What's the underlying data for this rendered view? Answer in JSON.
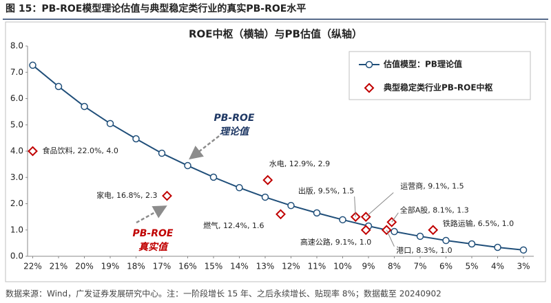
{
  "caption": "图 15：PB-ROE模型理论估值与典型稳定类行业的真实PB-ROE水平",
  "source": "数据来源：Wind，广发证券发展研究中心。注：一阶段增长 15 年、之后永续增长、贴现率 8%；数据截至 20240902",
  "chart_data": {
    "type": "line-scatter",
    "title": "ROE中枢（横轴）与PB估值（纵轴）",
    "xlim": [
      22.2,
      2.6
    ],
    "ylim": [
      0,
      8
    ],
    "xticks": [
      {
        "value": 22,
        "label": "22%"
      },
      {
        "value": 21,
        "label": "21%"
      },
      {
        "value": 20,
        "label": "20%"
      },
      {
        "value": 19,
        "label": "19%"
      },
      {
        "value": 18,
        "label": "18%"
      },
      {
        "value": 17,
        "label": "17%"
      },
      {
        "value": 16,
        "label": "16%"
      },
      {
        "value": 15,
        "label": "15%"
      },
      {
        "value": 14,
        "label": "14%"
      },
      {
        "value": 13,
        "label": "13%"
      },
      {
        "value": 12,
        "label": "12%"
      },
      {
        "value": 11,
        "label": "11%"
      },
      {
        "value": 10,
        "label": "10%"
      },
      {
        "value": 9,
        "label": "9%"
      },
      {
        "value": 8,
        "label": "8%"
      },
      {
        "value": 7,
        "label": "7%"
      },
      {
        "value": 6,
        "label": "6%"
      },
      {
        "value": 5,
        "label": "5%"
      },
      {
        "value": 4,
        "label": "4%"
      },
      {
        "value": 3,
        "label": "3%"
      }
    ],
    "yticks": [
      {
        "value": 0,
        "label": "0.0"
      },
      {
        "value": 1,
        "label": "1.0"
      },
      {
        "value": 2,
        "label": "2.0"
      },
      {
        "value": 3,
        "label": "3.0"
      },
      {
        "value": 4,
        "label": "4.0"
      },
      {
        "value": 5,
        "label": "5.0"
      },
      {
        "value": 6,
        "label": "6.0"
      },
      {
        "value": 7,
        "label": "7.0"
      },
      {
        "value": 8,
        "label": "8.0"
      }
    ],
    "legend": "upper right",
    "series": [
      {
        "name": "估值模型：PB理论值",
        "type": "line",
        "color": "#1f4e79",
        "x": [
          22,
          21,
          20,
          19,
          18,
          17,
          16,
          15,
          14,
          13,
          12,
          11,
          10,
          9,
          8,
          7,
          6,
          5,
          4,
          3
        ],
        "values": [
          7.27,
          6.46,
          5.7,
          5.05,
          4.47,
          3.92,
          3.45,
          3.01,
          2.61,
          2.25,
          1.93,
          1.65,
          1.39,
          1.15,
          0.94,
          0.76,
          0.6,
          0.47,
          0.34,
          0.24
        ]
      },
      {
        "name": "典型稳定类行业PB-ROE中枢",
        "type": "scatter",
        "color": "#c00000",
        "x": [
          22.0,
          16.8,
          12.9,
          12.4,
          9.5,
          9.1,
          9.1,
          8.3,
          8.1,
          6.5
        ],
        "values": [
          4.0,
          2.3,
          2.9,
          1.6,
          1.5,
          1.5,
          1.0,
          1.0,
          1.3,
          1.0
        ],
        "value_labels": [
          "食品饮料, 22.0%, 4.0",
          "家电, 16.8%, 2.3",
          "水电, 12.9%, 2.9",
          "燃气, 12.4%, 1.6",
          "出版, 9.5%, 1.5",
          "运营商, 9.1%, 1.5",
          "高速公路, 9.1%, 1.0",
          "港口, 8.3%, 1.0",
          "全部A股, 8.1%, 1.3",
          "铁路运输, 6.5%, 1.0"
        ]
      }
    ],
    "annotations": [
      {
        "lines": [
          "PB-ROE",
          "理论值"
        ],
        "color": "#1f3864"
      },
      {
        "lines": [
          "PB-ROE",
          "真实值"
        ],
        "color": "#c00000"
      }
    ]
  }
}
